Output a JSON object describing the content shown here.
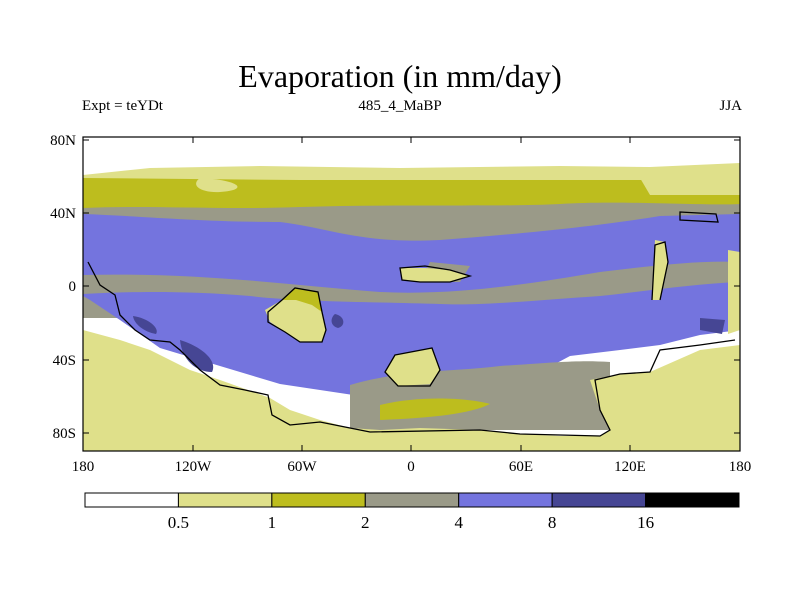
{
  "title": "Evaporation (in mm/day)",
  "left_label": "Expt = teYDt",
  "center_label": "485_4_MaBP",
  "right_label": "JJA",
  "lat_ticks": [
    "80N",
    "40N",
    "0",
    "40S",
    "80S"
  ],
  "lon_ticks": [
    "180",
    "120W",
    "60W",
    "0",
    "60E",
    "120E",
    "180"
  ],
  "colorbar": {
    "levels": [
      "0.5",
      "1",
      "2",
      "4",
      "8",
      "16"
    ],
    "colors": [
      "#ffffff",
      "#dfe08a",
      "#bdbd1e",
      "#9a9a88",
      "#7474de",
      "#464694",
      "#000000"
    ]
  }
}
